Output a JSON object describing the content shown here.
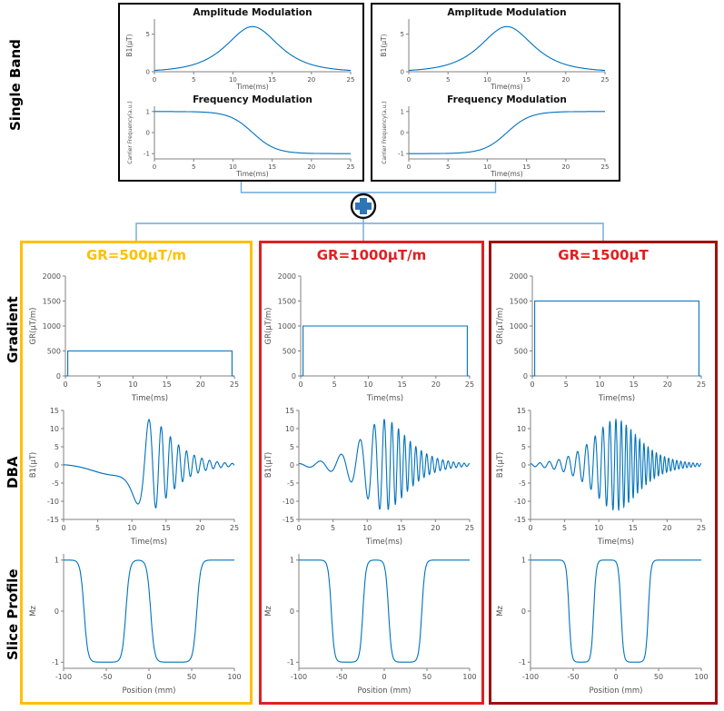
{
  "labels": {
    "single_band": "Single Band",
    "gradient": "Gradient",
    "dba": "DBA",
    "slice_profile": "Slice Profile"
  },
  "panels": [
    {
      "title": "GR=500μT/m",
      "border_color": "#FFC000",
      "title_color": "#FFC000"
    },
    {
      "title": "GR=1000μT/m",
      "border_color": "#E02020",
      "title_color": "#E02020"
    },
    {
      "title": "GR=1500μT",
      "border_color": "#A01010",
      "title_color": "#E02020"
    }
  ],
  "colors": {
    "line": "#0072BD",
    "connector": "#6FA8DC",
    "plus": "#2E75B6",
    "top_box_border": "#000000"
  },
  "chart_data": [
    {
      "id": "am_left",
      "type": "line",
      "title": "Amplitude Modulation",
      "xlabel": "Time(ms)",
      "ylabel": "B1(μT)",
      "xlim": [
        0,
        25
      ],
      "ylim": [
        0,
        7
      ],
      "xticks": [
        0,
        5,
        10,
        15,
        20,
        25
      ],
      "yticks": [
        0,
        5
      ],
      "margin": {
        "l": 34,
        "r": 10,
        "t": 16,
        "b": 22
      },
      "fs": {
        "tick": 7,
        "label": 7.5,
        "title": 10.5
      },
      "series": [
        {
          "gen": "sech",
          "n": 300,
          "params": {
            "amp": 6,
            "beta": 4.2,
            "center": 12.5,
            "hw": 12.5
          }
        }
      ]
    },
    {
      "id": "fm_left",
      "type": "line",
      "title": "Frequency Modulation",
      "xlabel": "Time(ms)",
      "ylabel": "Carrier Frequency(a.u.)",
      "xlim": [
        0,
        25
      ],
      "ylim": [
        -1.25,
        1.25
      ],
      "xticks": [
        0,
        5,
        10,
        15,
        20,
        25
      ],
      "yticks": [
        -1,
        0,
        1
      ],
      "margin": {
        "l": 34,
        "r": 10,
        "t": 16,
        "b": 22
      },
      "fs": {
        "tick": 7,
        "label": 7.5,
        "ylabel": 6,
        "title": 10.5
      },
      "series": [
        {
          "gen": "tanh",
          "n": 300,
          "params": {
            "dir": -1,
            "beta": 4.2,
            "center": 12.5,
            "hw": 12.5
          }
        }
      ]
    },
    {
      "id": "am_right",
      "type": "line",
      "title": "Amplitude Modulation",
      "xlabel": "Time(ms)",
      "ylabel": "B1(μT)",
      "xlim": [
        0,
        25
      ],
      "ylim": [
        0,
        7
      ],
      "xticks": [
        0,
        5,
        10,
        15,
        20,
        25
      ],
      "yticks": [
        0,
        5
      ],
      "margin": {
        "l": 34,
        "r": 10,
        "t": 16,
        "b": 22
      },
      "fs": {
        "tick": 7,
        "label": 7.5,
        "title": 10.5
      },
      "series": [
        {
          "gen": "sech",
          "n": 300,
          "params": {
            "amp": 6,
            "beta": 4.2,
            "center": 12.5,
            "hw": 12.5
          }
        }
      ]
    },
    {
      "id": "fm_right",
      "type": "line",
      "title": "Frequency Modulation",
      "xlabel": "Time(ms)",
      "ylabel": "Carrier Frequency(a.u.)",
      "xlim": [
        0,
        25
      ],
      "ylim": [
        -1.25,
        1.25
      ],
      "xticks": [
        0,
        5,
        10,
        15,
        20,
        25
      ],
      "yticks": [
        -1,
        0,
        1
      ],
      "margin": {
        "l": 34,
        "r": 10,
        "t": 16,
        "b": 22
      },
      "fs": {
        "tick": 7,
        "label": 7.5,
        "ylabel": 6,
        "title": 10.5
      },
      "series": [
        {
          "gen": "tanh",
          "n": 300,
          "params": {
            "dir": 1,
            "beta": 4.2,
            "center": 12.5,
            "hw": 12.5
          }
        }
      ]
    },
    {
      "id": "gr_500",
      "type": "line",
      "xlabel": "Time(ms)",
      "ylabel": "GR(μT/m)",
      "xlim": [
        0,
        25
      ],
      "ylim": [
        0,
        2000
      ],
      "xticks": [
        0,
        5,
        10,
        15,
        20,
        25
      ],
      "yticks": [
        0,
        500,
        1000,
        1500,
        2000
      ],
      "margin": {
        "l": 42,
        "r": 12,
        "t": 10,
        "b": 30
      },
      "fs": {
        "tick": 8,
        "label": 8.5
      },
      "series": [
        {
          "points": [
            [
              0,
              0
            ],
            [
              0.35,
              0
            ],
            [
              0.35,
              500
            ],
            [
              24.65,
              500
            ],
            [
              24.65,
              0
            ],
            [
              25,
              0
            ]
          ]
        }
      ]
    },
    {
      "id": "gr_1000",
      "type": "line",
      "xlabel": "Time(ms)",
      "ylabel": "GR(μT/m)",
      "xlim": [
        0,
        25
      ],
      "ylim": [
        0,
        2000
      ],
      "xticks": [
        0,
        5,
        10,
        15,
        20,
        25
      ],
      "yticks": [
        0,
        500,
        1000,
        1500,
        2000
      ],
      "margin": {
        "l": 42,
        "r": 12,
        "t": 10,
        "b": 30
      },
      "fs": {
        "tick": 8,
        "label": 8.5
      },
      "series": [
        {
          "points": [
            [
              0,
              0
            ],
            [
              0.35,
              0
            ],
            [
              0.35,
              1000
            ],
            [
              24.65,
              1000
            ],
            [
              24.65,
              0
            ],
            [
              25,
              0
            ]
          ]
        }
      ]
    },
    {
      "id": "gr_1500",
      "type": "line",
      "xlabel": "Time(ms)",
      "ylabel": "GR(μT/m)",
      "xlim": [
        0,
        25
      ],
      "ylim": [
        0,
        2000
      ],
      "xticks": [
        0,
        5,
        10,
        15,
        20,
        25
      ],
      "yticks": [
        0,
        500,
        1000,
        1500,
        2000
      ],
      "margin": {
        "l": 42,
        "r": 12,
        "t": 10,
        "b": 30
      },
      "fs": {
        "tick": 8,
        "label": 8.5
      },
      "series": [
        {
          "points": [
            [
              0,
              0
            ],
            [
              0.35,
              0
            ],
            [
              0.35,
              1500
            ],
            [
              24.65,
              1500
            ],
            [
              24.65,
              0
            ],
            [
              25,
              0
            ]
          ]
        }
      ]
    },
    {
      "id": "b1_500",
      "type": "line",
      "xlabel": "Time(ms)",
      "ylabel": "B1(μT)",
      "xlim": [
        0,
        25
      ],
      "ylim": [
        -15,
        15
      ],
      "xticks": [
        0,
        5,
        10,
        15,
        20,
        25
      ],
      "yticks": [
        -15,
        -10,
        -5,
        0,
        5,
        10,
        15
      ],
      "margin": {
        "l": 40,
        "r": 12,
        "t": 8,
        "b": 30
      },
      "fs": {
        "tick": 8,
        "label": 8.5
      },
      "series": [
        {
          "gen": "chirp",
          "n": 1600,
          "params": {
            "amp": 12.5,
            "beta": 4.2,
            "center": 12.5,
            "hw": 12.5,
            "f0": 0.42,
            "mu": 9
          }
        }
      ]
    },
    {
      "id": "b1_1000",
      "type": "line",
      "xlabel": "Time(ms)",
      "ylabel": "B1(μT)",
      "xlim": [
        0,
        25
      ],
      "ylim": [
        -15,
        15
      ],
      "xticks": [
        0,
        5,
        10,
        15,
        20,
        25
      ],
      "yticks": [
        -15,
        -10,
        -5,
        0,
        5,
        10,
        15
      ],
      "margin": {
        "l": 40,
        "r": 12,
        "t": 8,
        "b": 30
      },
      "fs": {
        "tick": 8,
        "label": 8.5
      },
      "series": [
        {
          "gen": "chirp",
          "n": 1600,
          "params": {
            "amp": 12.5,
            "beta": 4.2,
            "center": 12.5,
            "hw": 12.5,
            "f0": 0.8,
            "mu": 9
          }
        }
      ]
    },
    {
      "id": "b1_1500",
      "type": "line",
      "xlabel": "Time(ms)",
      "ylabel": "B1(μT)",
      "xlim": [
        0,
        25
      ],
      "ylim": [
        -15,
        15
      ],
      "xticks": [
        0,
        5,
        10,
        15,
        20,
        25
      ],
      "yticks": [
        -15,
        -10,
        -5,
        0,
        5,
        10,
        15
      ],
      "margin": {
        "l": 40,
        "r": 12,
        "t": 8,
        "b": 30
      },
      "fs": {
        "tick": 8,
        "label": 8.5
      },
      "series": [
        {
          "gen": "chirp",
          "n": 1600,
          "params": {
            "amp": 12.5,
            "beta": 4.2,
            "center": 12.5,
            "hw": 12.5,
            "f0": 1.2,
            "mu": 9
          }
        }
      ]
    },
    {
      "id": "mz_500",
      "type": "line",
      "xlabel": "Position (mm)",
      "ylabel": "Mz",
      "xlim": [
        -100,
        100
      ],
      "ylim": [
        -1.12,
        1.12
      ],
      "xticks": [
        -100,
        -50,
        0,
        50,
        100
      ],
      "yticks": [
        -1,
        0,
        1
      ],
      "margin": {
        "l": 40,
        "r": 12,
        "t": 8,
        "b": 30
      },
      "fs": {
        "tick": 8,
        "label": 8.5
      },
      "series": [
        {
          "gen": "bands",
          "n": 600,
          "params": {
            "w": 2.2,
            "bands": [
              [
                -76,
                -27
              ],
              [
                2,
                56
              ]
            ]
          }
        }
      ]
    },
    {
      "id": "mz_1000",
      "type": "line",
      "xlabel": "Position (mm)",
      "ylabel": "Mz",
      "xlim": [
        -100,
        100
      ],
      "ylim": [
        -1.12,
        1.12
      ],
      "xticks": [
        -100,
        -50,
        0,
        50,
        100
      ],
      "yticks": [
        -1,
        0,
        1
      ],
      "margin": {
        "l": 40,
        "r": 12,
        "t": 8,
        "b": 30
      },
      "fs": {
        "tick": 8,
        "label": 8.5
      },
      "series": [
        {
          "gen": "bands",
          "n": 600,
          "params": {
            "w": 1.8,
            "bands": [
              [
                -62,
                -25
              ],
              [
                5,
                44
              ]
            ]
          }
        }
      ]
    },
    {
      "id": "mz_1500",
      "type": "line",
      "xlabel": "Position (mm)",
      "ylabel": "Mz",
      "xlim": [
        -100,
        100
      ],
      "ylim": [
        -1.12,
        1.12
      ],
      "xticks": [
        -100,
        -50,
        0,
        50,
        100
      ],
      "yticks": [
        -1,
        0,
        1
      ],
      "margin": {
        "l": 40,
        "r": 12,
        "t": 8,
        "b": 30
      },
      "fs": {
        "tick": 8,
        "label": 8.5
      },
      "series": [
        {
          "gen": "bands",
          "n": 600,
          "params": {
            "w": 1.5,
            "bands": [
              [
                -55,
                -26
              ],
              [
                6,
                38
              ]
            ]
          }
        }
      ]
    }
  ]
}
